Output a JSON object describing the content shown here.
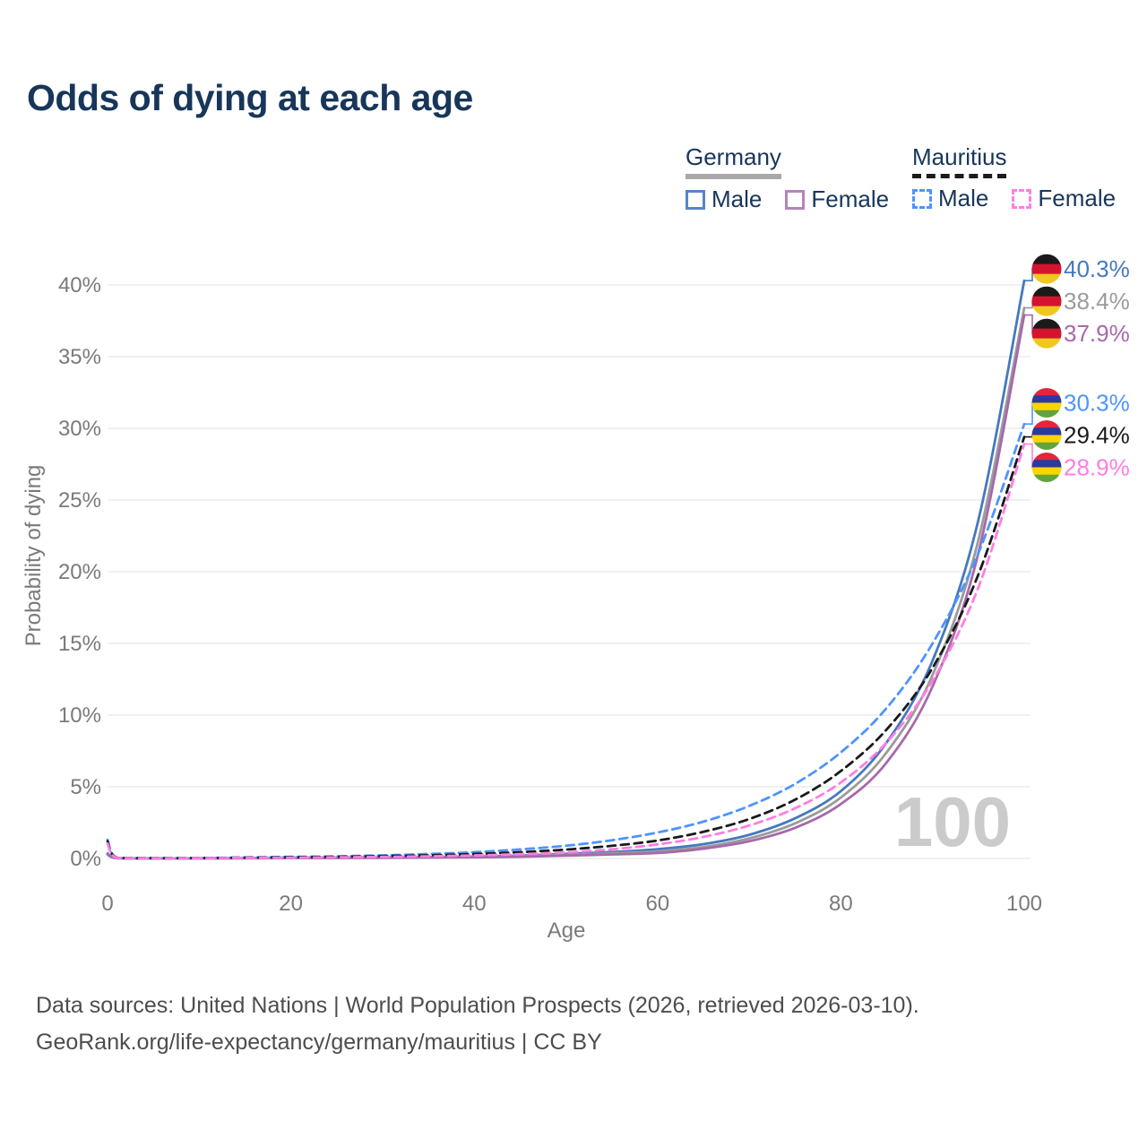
{
  "page": {
    "title": "Odds of dying at each age",
    "watermark": "100",
    "footer_line1": "Data sources: United Nations | World Population Prospects (2026, retrieved 2026-03-10).",
    "footer_line2": "GeoRank.org/life-expectancy/germany/mauritius | CC BY"
  },
  "legend": {
    "groups": [
      {
        "label": "Germany",
        "line_style": "solid",
        "underline_color": "#a9a9a9",
        "items": [
          {
            "label": "Male",
            "color": "#5585c7"
          },
          {
            "label": "Female",
            "color": "#b583bd"
          }
        ]
      },
      {
        "label": "Mauritius",
        "line_style": "dashed",
        "underline_color": "#1c1c1c",
        "items": [
          {
            "label": "Male",
            "color": "#4d94ff"
          },
          {
            "label": "Female",
            "color": "#ff80df"
          }
        ]
      }
    ]
  },
  "chart_data": {
    "type": "line",
    "title": "Odds of dying at each age",
    "xlabel": "Age",
    "ylabel": "Probability of dying",
    "xlim": [
      0,
      100
    ],
    "ylim": [
      0,
      40
    ],
    "grid": true,
    "yticks": [
      0,
      5,
      10,
      15,
      20,
      25,
      30,
      35,
      40
    ],
    "ytick_labels": [
      "0%",
      "5%",
      "10%",
      "15%",
      "20%",
      "25%",
      "30%",
      "35%",
      "40%"
    ],
    "xticks": [
      0,
      20,
      40,
      60,
      80,
      100
    ],
    "xtick_labels": [
      "0",
      "20",
      "40",
      "60",
      "80",
      "100"
    ],
    "ages": [
      0,
      1,
      5,
      10,
      15,
      20,
      25,
      30,
      35,
      40,
      45,
      50,
      55,
      60,
      65,
      70,
      75,
      80,
      85,
      90,
      95,
      100
    ],
    "unit": "percent",
    "series": [
      {
        "name": "Germany - Male",
        "color": "#4579be",
        "dashed": false,
        "flag": "germany",
        "end_label": "40.3%",
        "end_value": 40.3,
        "values": [
          0.35,
          0.03,
          0.01,
          0.012,
          0.03,
          0.06,
          0.07,
          0.08,
          0.1,
          0.13,
          0.2,
          0.32,
          0.45,
          0.65,
          1.0,
          1.65,
          2.8,
          4.7,
          8.1,
          13.8,
          23.6,
          40.3
        ]
      },
      {
        "name": "Germany - All",
        "color": "#9b9b9b",
        "dashed": false,
        "flag": "germany",
        "end_label": "38.4%",
        "end_value": 38.4,
        "values": [
          0.3,
          0.025,
          0.009,
          0.01,
          0.022,
          0.04,
          0.05,
          0.06,
          0.08,
          0.1,
          0.16,
          0.25,
          0.36,
          0.5,
          0.8,
          1.4,
          2.45,
          4.25,
          7.4,
          12.8,
          22.2,
          38.4
        ]
      },
      {
        "name": "Germany - Female",
        "color": "#a768ab",
        "dashed": false,
        "flag": "germany",
        "end_label": "37.9%",
        "end_value": 37.9,
        "values": [
          0.28,
          0.02,
          0.008,
          0.008,
          0.015,
          0.025,
          0.03,
          0.04,
          0.06,
          0.08,
          0.12,
          0.2,
          0.28,
          0.38,
          0.68,
          1.2,
          2.14,
          3.8,
          6.7,
          12.0,
          21.3,
          37.9
        ]
      },
      {
        "name": "Mauritius - Male",
        "color": "#4d94ff",
        "dashed": true,
        "flag": "mauritius",
        "end_label": "30.3%",
        "end_value": 30.3,
        "values": [
          1.3,
          0.06,
          0.025,
          0.03,
          0.07,
          0.11,
          0.15,
          0.22,
          0.31,
          0.44,
          0.63,
          0.89,
          1.27,
          1.81,
          2.57,
          3.66,
          5.2,
          7.4,
          10.5,
          15.0,
          21.3,
          30.3
        ]
      },
      {
        "name": "Mauritius - All",
        "color": "#1a1a1a",
        "dashed": true,
        "flag": "mauritius",
        "end_label": "29.4%",
        "end_value": 29.4,
        "values": [
          1.2,
          0.05,
          0.02,
          0.025,
          0.055,
          0.08,
          0.11,
          0.16,
          0.22,
          0.31,
          0.44,
          0.62,
          0.88,
          1.25,
          1.86,
          2.75,
          4.1,
          6.1,
          9.0,
          13.3,
          19.8,
          29.4
        ]
      },
      {
        "name": "Mauritius - Female",
        "color": "#ff7de2",
        "dashed": true,
        "flag": "mauritius",
        "end_label": "28.9%",
        "end_value": 28.9,
        "values": [
          1.05,
          0.04,
          0.018,
          0.02,
          0.04,
          0.05,
          0.08,
          0.11,
          0.15,
          0.21,
          0.3,
          0.42,
          0.64,
          0.98,
          1.5,
          2.3,
          3.5,
          5.3,
          8.1,
          12.4,
          18.9,
          28.9
        ]
      }
    ],
    "flag_colors": {
      "germany": [
        "#1a1a1a",
        "#d4142f",
        "#f2c71d"
      ],
      "mauritius": [
        "#e4263d",
        "#2b3a9e",
        "#ffd400",
        "#63a33e"
      ]
    },
    "colors": {
      "grid": "#ececec",
      "axis_text": "#7a7a7a",
      "watermark": "#cbcbcb",
      "title": "#17365a"
    },
    "legend_position": "top-right"
  }
}
